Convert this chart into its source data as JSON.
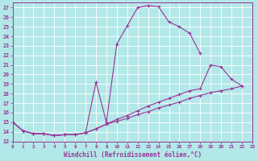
{
  "background_color": "#b3e8e8",
  "grid_color": "#c8f0f0",
  "line_color": "#993399",
  "marker": "+",
  "xlabel": "Windchill (Refroidissement éolien,°C)",
  "xlim": [
    0,
    23
  ],
  "ylim": [
    13,
    27.5
  ],
  "yticks": [
    13,
    14,
    15,
    16,
    17,
    18,
    19,
    20,
    21,
    22,
    23,
    24,
    25,
    26,
    27
  ],
  "xticks": [
    0,
    1,
    2,
    3,
    4,
    5,
    6,
    7,
    8,
    9,
    10,
    11,
    12,
    13,
    14,
    15,
    16,
    17,
    18,
    19,
    20,
    21,
    22,
    23
  ],
  "series": [
    {
      "x": [
        0,
        1,
        2,
        3,
        4,
        5,
        6,
        7,
        8,
        9,
        10,
        11,
        12,
        13,
        14,
        15,
        16,
        17,
        18
      ],
      "y": [
        15.0,
        14.1,
        13.8,
        13.8,
        13.6,
        13.7,
        13.7,
        13.9,
        19.2,
        15.0,
        23.2,
        25.1,
        27.0,
        27.2,
        27.1,
        25.5,
        25.0,
        24.3,
        22.2
      ]
    },
    {
      "x": [
        0,
        1,
        2,
        3,
        4,
        5,
        6,
        7,
        8,
        9,
        10,
        11,
        12,
        13,
        14,
        15,
        16,
        17,
        18,
        19,
        20,
        21,
        22
      ],
      "y": [
        15.0,
        14.1,
        13.8,
        13.8,
        13.6,
        13.7,
        13.7,
        13.9,
        14.3,
        14.8,
        15.3,
        15.7,
        16.2,
        16.7,
        17.1,
        17.5,
        17.9,
        18.3,
        18.5,
        21.0,
        20.8,
        19.5,
        18.8
      ]
    },
    {
      "x": [
        0,
        1,
        2,
        3,
        4,
        5,
        6,
        7,
        8,
        9,
        10,
        11,
        12,
        13,
        14,
        15,
        16,
        17,
        18,
        19,
        20,
        21,
        22
      ],
      "y": [
        15.0,
        14.1,
        13.8,
        13.8,
        13.6,
        13.7,
        13.7,
        13.9,
        14.3,
        14.8,
        15.1,
        15.4,
        15.8,
        16.1,
        16.5,
        16.8,
        17.1,
        17.5,
        17.8,
        18.1,
        18.3,
        18.5,
        18.8
      ]
    }
  ]
}
